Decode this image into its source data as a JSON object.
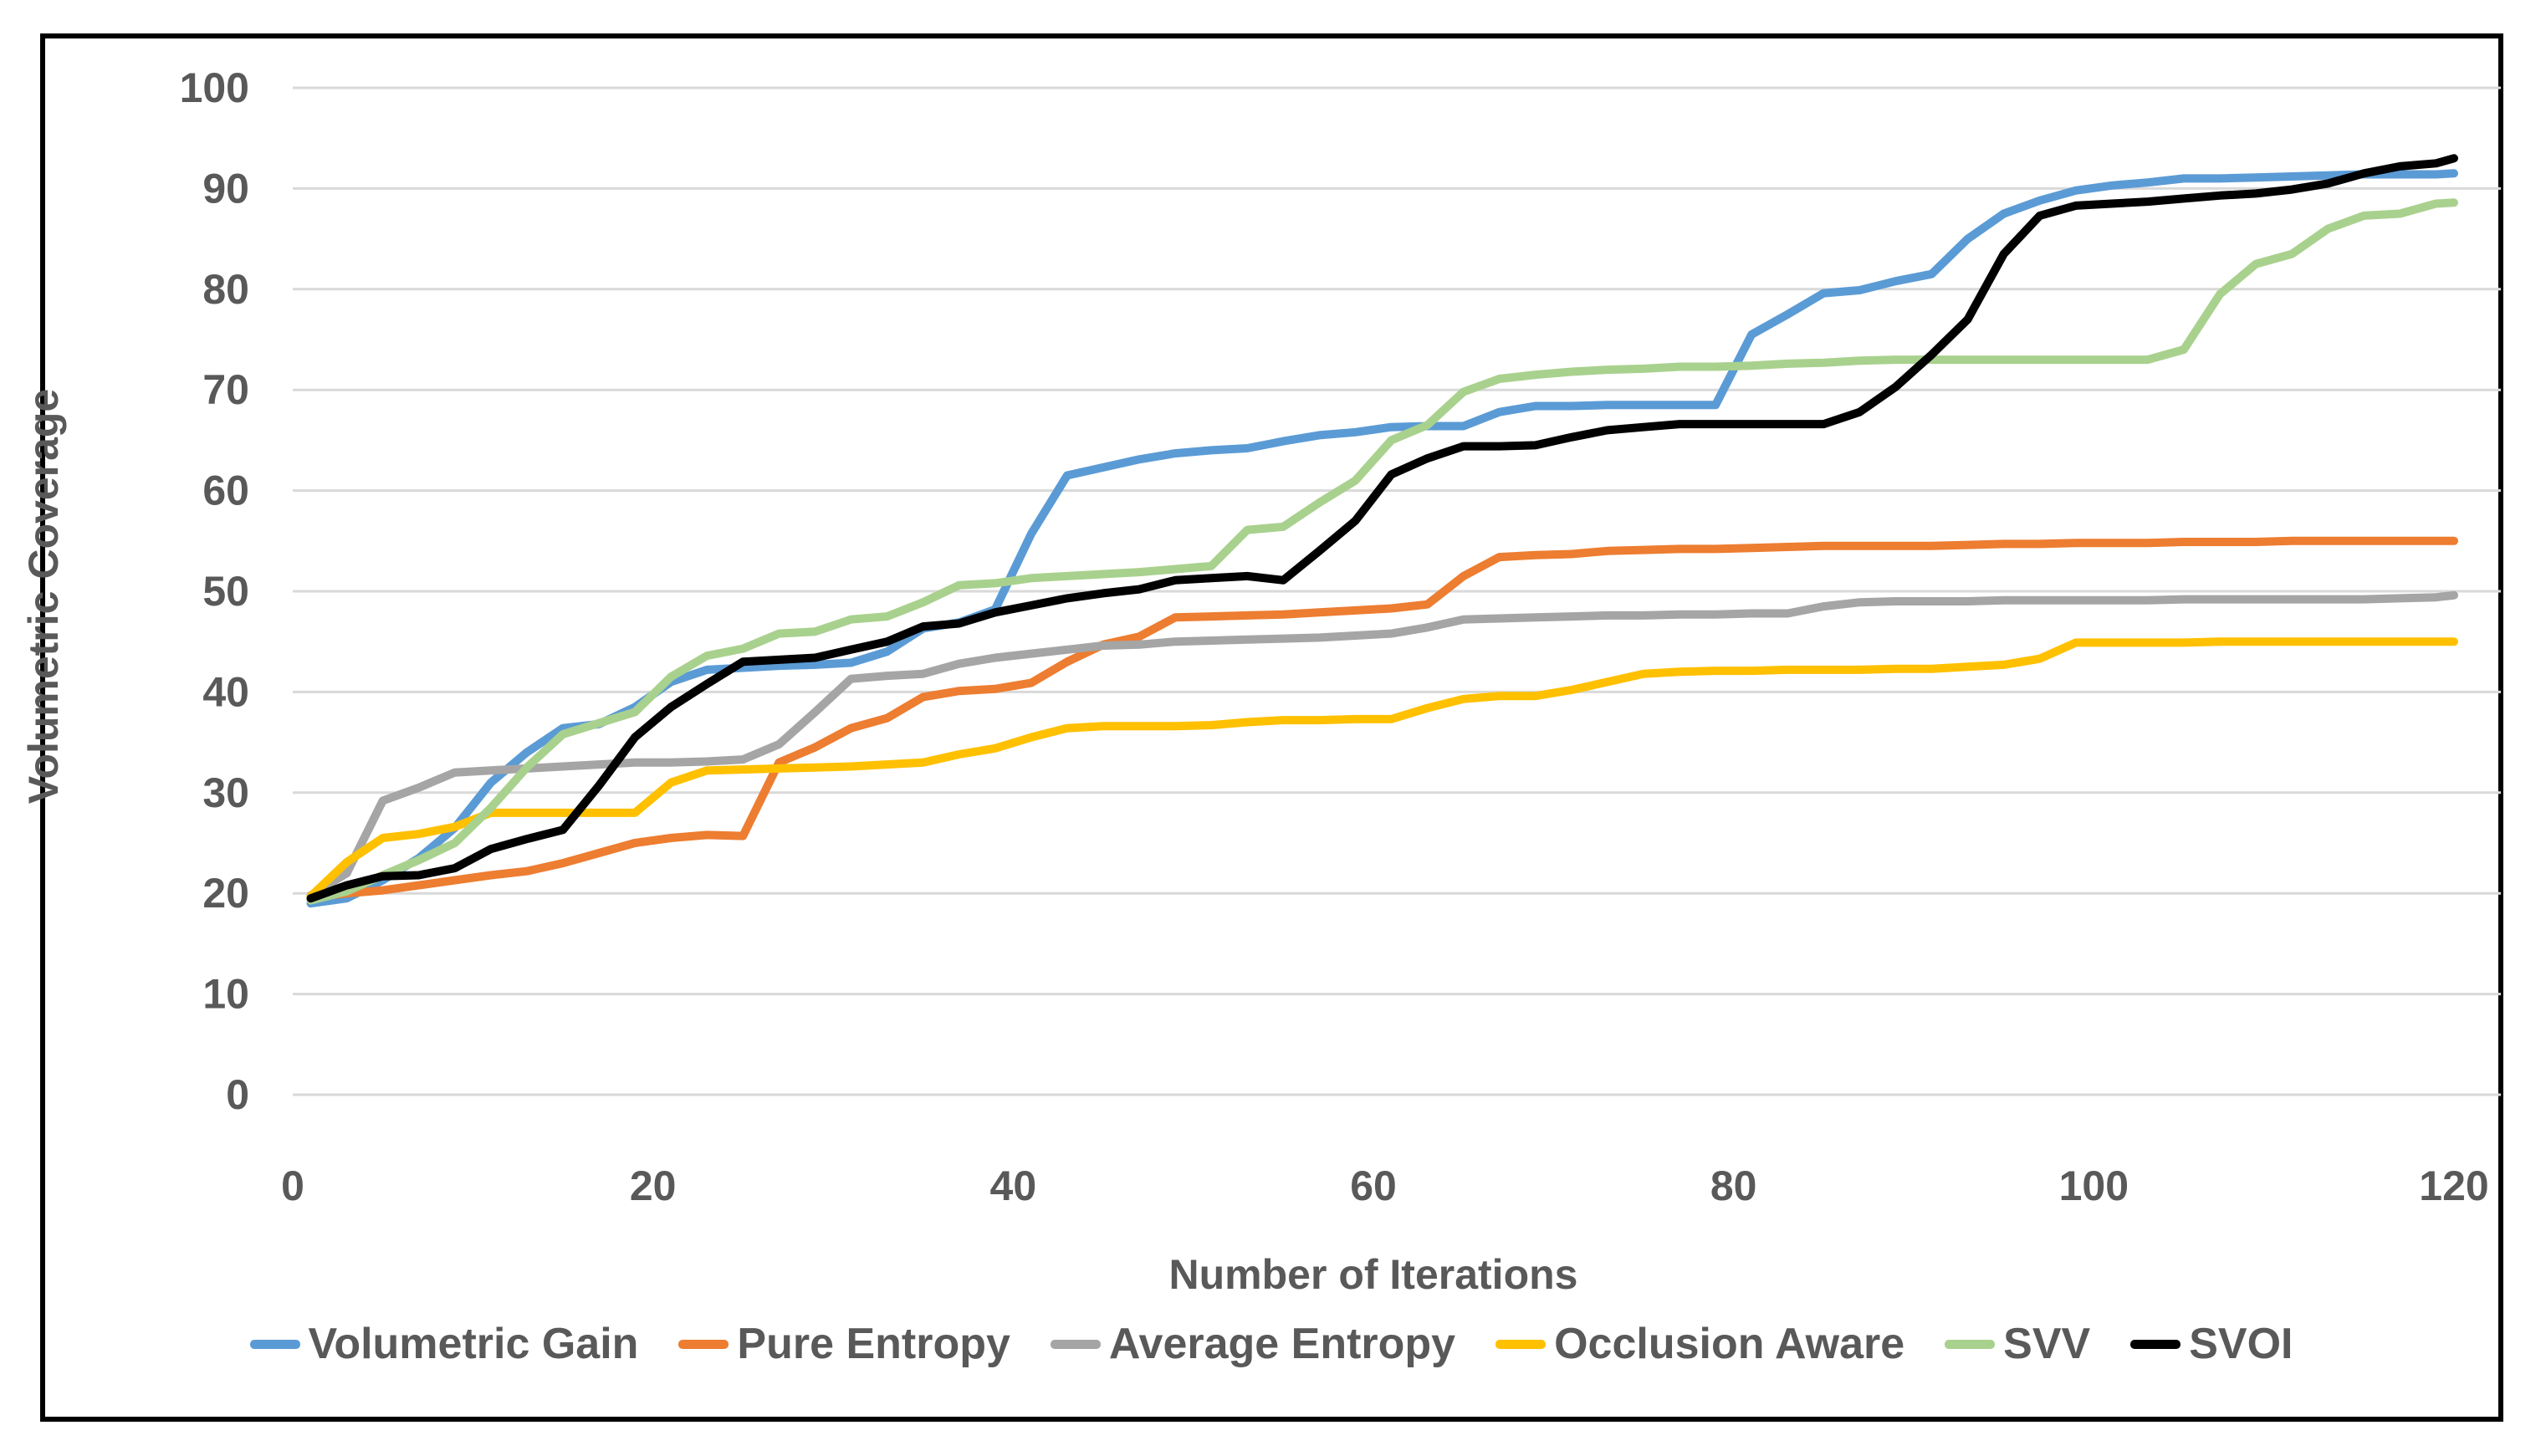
{
  "colors": {
    "text": "#595959",
    "gridline": "#D9D9D9",
    "figure_border": "#000000",
    "background": "#FFFFFF"
  },
  "chart_data": {
    "type": "line",
    "title": "",
    "xlabel": "Number of Iterations",
    "ylabel": "Volumetric Coverage",
    "xlim": [
      0,
      120
    ],
    "ylim": [
      0,
      100
    ],
    "x_ticks": [
      0,
      20,
      40,
      60,
      80,
      100,
      120
    ],
    "y_ticks": [
      0,
      10,
      20,
      30,
      40,
      50,
      60,
      70,
      80,
      90,
      100
    ],
    "grid": true,
    "legend_position": "bottom",
    "x": [
      1,
      3,
      5,
      7,
      9,
      11,
      13,
      15,
      17,
      19,
      21,
      23,
      25,
      27,
      29,
      31,
      33,
      35,
      37,
      39,
      41,
      43,
      45,
      47,
      49,
      51,
      53,
      55,
      57,
      59,
      61,
      63,
      65,
      67,
      69,
      71,
      73,
      75,
      77,
      79,
      81,
      83,
      85,
      87,
      89,
      91,
      93,
      95,
      97,
      99,
      101,
      103,
      105,
      107,
      109,
      111,
      113,
      115,
      117,
      119,
      120
    ],
    "series": [
      {
        "name": "Volumetric Gain",
        "color": "#5B9BD5",
        "values": [
          19.0,
          19.5,
          21.3,
          23.5,
          26.5,
          31.0,
          34.0,
          36.4,
          36.8,
          38.5,
          41.0,
          42.2,
          42.4,
          42.6,
          42.7,
          42.9,
          44.0,
          46.3,
          46.9,
          48.2,
          55.7,
          61.5,
          62.3,
          63.1,
          63.7,
          64.0,
          64.2,
          64.9,
          65.5,
          65.8,
          66.3,
          66.4,
          66.4,
          67.8,
          68.4,
          68.4,
          68.5,
          68.5,
          68.5,
          68.5,
          75.5,
          77.5,
          79.6,
          79.9,
          80.8,
          81.5,
          85.0,
          87.5,
          88.8,
          89.8,
          90.3,
          90.6,
          91.0,
          91.0,
          91.1,
          91.2,
          91.3,
          91.4,
          91.4,
          91.4,
          91.5
        ]
      },
      {
        "name": "Pure Entropy",
        "color": "#ED7D31",
        "values": [
          19.6,
          20.0,
          20.3,
          20.8,
          21.3,
          21.8,
          22.2,
          23.0,
          24.0,
          25.0,
          25.5,
          25.8,
          25.7,
          33.0,
          34.5,
          36.4,
          37.4,
          39.5,
          40.1,
          40.3,
          40.9,
          43.0,
          44.7,
          45.5,
          47.4,
          47.5,
          47.6,
          47.7,
          47.9,
          48.1,
          48.3,
          48.7,
          51.5,
          53.4,
          53.6,
          53.7,
          54.0,
          54.1,
          54.2,
          54.2,
          54.3,
          54.4,
          54.5,
          54.5,
          54.5,
          54.5,
          54.6,
          54.7,
          54.7,
          54.8,
          54.8,
          54.8,
          54.9,
          54.9,
          54.9,
          55.0,
          55.0,
          55.0,
          55.0,
          55.0,
          55.0
        ]
      },
      {
        "name": "Average Entropy",
        "color": "#A5A5A5",
        "values": [
          19.8,
          22.0,
          29.2,
          30.5,
          32.0,
          32.2,
          32.4,
          32.6,
          32.8,
          33.0,
          33.0,
          33.1,
          33.3,
          34.8,
          38.0,
          41.3,
          41.6,
          41.8,
          42.8,
          43.4,
          43.8,
          44.2,
          44.6,
          44.7,
          45.0,
          45.1,
          45.2,
          45.3,
          45.4,
          45.6,
          45.8,
          46.4,
          47.2,
          47.3,
          47.4,
          47.5,
          47.6,
          47.6,
          47.7,
          47.7,
          47.8,
          47.8,
          48.5,
          48.9,
          49.0,
          49.0,
          49.0,
          49.1,
          49.1,
          49.1,
          49.1,
          49.1,
          49.2,
          49.2,
          49.2,
          49.2,
          49.2,
          49.2,
          49.3,
          49.4,
          49.6
        ]
      },
      {
        "name": "Occlusion Aware",
        "color": "#FFC000",
        "values": [
          19.7,
          23.1,
          25.5,
          25.9,
          26.6,
          28.0,
          28.0,
          28.0,
          28.0,
          28.0,
          31.0,
          32.2,
          32.3,
          32.4,
          32.5,
          32.6,
          32.8,
          33.0,
          33.8,
          34.4,
          35.5,
          36.4,
          36.6,
          36.6,
          36.6,
          36.7,
          37.0,
          37.2,
          37.2,
          37.3,
          37.3,
          38.4,
          39.3,
          39.6,
          39.6,
          40.2,
          41.0,
          41.8,
          42.0,
          42.1,
          42.1,
          42.2,
          42.2,
          42.2,
          42.3,
          42.3,
          42.5,
          42.7,
          43.3,
          44.9,
          44.9,
          44.9,
          44.9,
          45.0,
          45.0,
          45.0,
          45.0,
          45.0,
          45.0,
          45.0,
          45.0
        ]
      },
      {
        "name": "SVV",
        "color": "#A9D18E",
        "values": [
          19.3,
          20.2,
          21.8,
          23.3,
          25.0,
          28.5,
          32.5,
          35.8,
          36.9,
          38.0,
          41.5,
          43.6,
          44.3,
          45.8,
          46.0,
          47.2,
          47.5,
          48.9,
          50.6,
          50.8,
          51.3,
          51.5,
          51.7,
          51.9,
          52.2,
          52.5,
          56.1,
          56.4,
          58.8,
          61.0,
          65.0,
          66.5,
          69.8,
          71.1,
          71.5,
          71.8,
          72.0,
          72.1,
          72.3,
          72.3,
          72.4,
          72.6,
          72.7,
          72.9,
          73.0,
          73.0,
          73.0,
          73.0,
          73.0,
          73.0,
          73.0,
          73.0,
          74.0,
          79.5,
          82.5,
          83.5,
          86.0,
          87.3,
          87.5,
          88.5,
          88.6
        ]
      },
      {
        "name": "SVOI",
        "color": "#000000",
        "values": [
          19.5,
          20.8,
          21.7,
          21.8,
          22.5,
          24.4,
          25.4,
          26.3,
          30.7,
          35.5,
          38.5,
          40.8,
          43.0,
          43.2,
          43.4,
          44.2,
          45.0,
          46.5,
          46.8,
          47.9,
          48.6,
          49.3,
          49.8,
          50.2,
          51.1,
          51.3,
          51.5,
          51.1,
          54.0,
          57.0,
          61.6,
          63.2,
          64.4,
          64.4,
          64.5,
          65.3,
          66.0,
          66.3,
          66.6,
          66.6,
          66.6,
          66.6,
          66.6,
          67.8,
          70.3,
          73.5,
          77.0,
          83.5,
          87.3,
          88.3,
          88.5,
          88.7,
          89.0,
          89.3,
          89.5,
          89.9,
          90.5,
          91.5,
          92.2,
          92.5,
          93.0
        ]
      }
    ]
  }
}
